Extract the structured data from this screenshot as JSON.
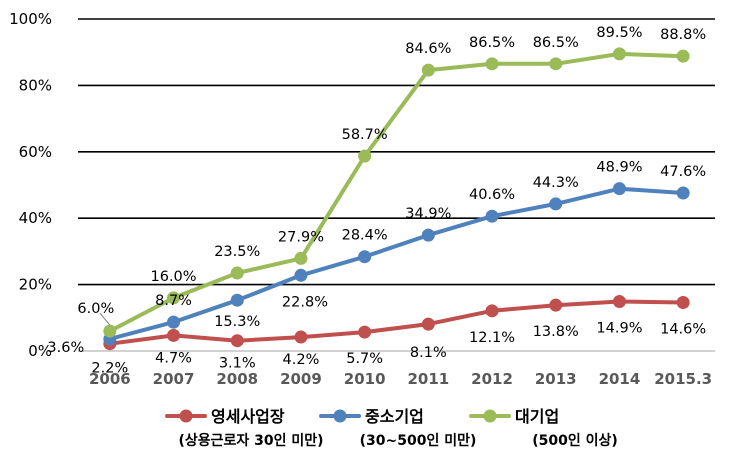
{
  "chart_data": {
    "type": "line",
    "categories": [
      "2006",
      "2007",
      "2008",
      "2009",
      "2010",
      "2011",
      "2012",
      "2013",
      "2014",
      "2015.3"
    ],
    "ylim": [
      0,
      100
    ],
    "yticks": [
      "0%",
      "20%",
      "40%",
      "60%",
      "80%",
      "100%"
    ],
    "grid": true,
    "legend_position": "bottom",
    "series": [
      {
        "name": "영세사업장",
        "subtitle": "(상용근로자 30인 미만)",
        "color": "#C0504D",
        "values": [
          2.2,
          4.7,
          3.1,
          4.2,
          5.7,
          8.1,
          12.1,
          13.8,
          14.9,
          14.6
        ],
        "labels": [
          "2.2%",
          "4.7%",
          "3.1%",
          "4.2%",
          "5.7%",
          "8.1%",
          "12.1%",
          "13.8%",
          "14.9%",
          "14.6%"
        ]
      },
      {
        "name": "중소기업",
        "subtitle": "(30~500인 미만)",
        "color": "#4F81BD",
        "values": [
          3.6,
          8.7,
          15.3,
          22.8,
          28.4,
          34.9,
          40.6,
          44.3,
          48.9,
          47.6
        ],
        "labels": [
          "3.6%",
          "8.7%",
          "15.3%",
          "22.8%",
          "28.4%",
          "34.9%",
          "40.6%",
          "44.3%",
          "48.9%",
          "47.6%"
        ]
      },
      {
        "name": "대기업",
        "subtitle": "(500인 이상)",
        "color": "#9BBB59",
        "values": [
          6.0,
          16.0,
          23.5,
          27.9,
          58.7,
          84.6,
          86.5,
          86.5,
          89.5,
          88.8
        ],
        "labels": [
          "6.0%",
          "16.0%",
          "23.5%",
          "27.9%",
          "58.7%",
          "84.6%",
          "86.5%",
          "86.5%",
          "89.5%",
          "88.8%"
        ]
      }
    ]
  }
}
